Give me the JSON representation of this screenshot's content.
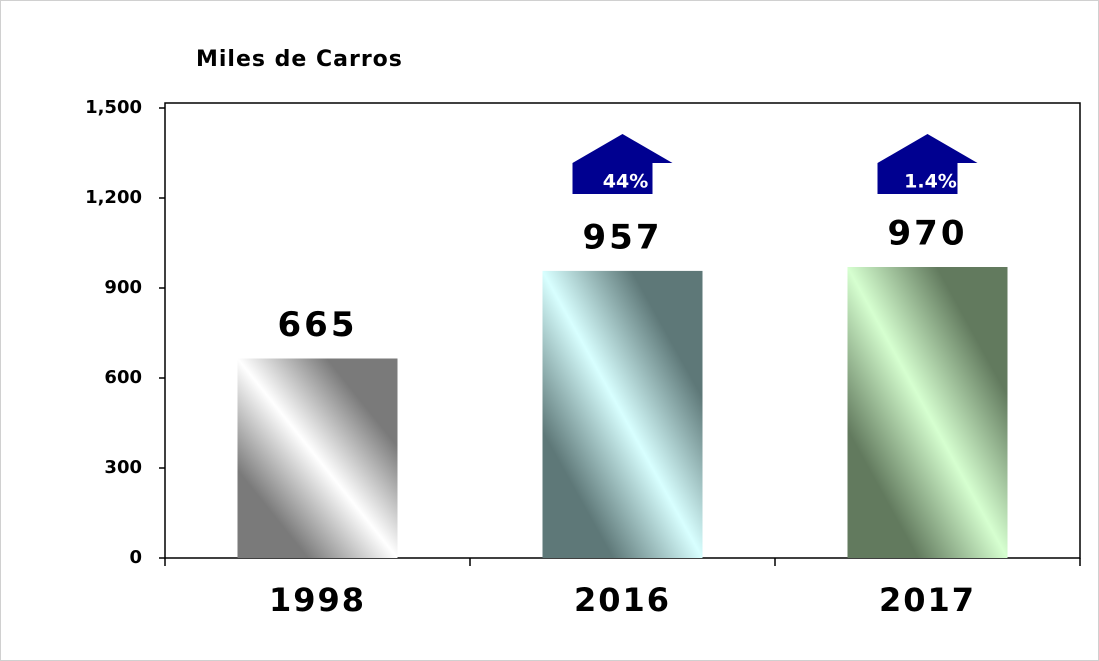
{
  "chart_data": {
    "type": "bar",
    "axis_title": "Miles de Carros",
    "categories": [
      "1998",
      "2016",
      "2017"
    ],
    "values": [
      665,
      957,
      970
    ],
    "colors": [
      "#7a7a7a",
      "#5e7878",
      "#627a5e"
    ],
    "highlight_colors": [
      "#ffffff",
      "#d8ffff",
      "#d6ffd0"
    ],
    "ylim": [
      0,
      1500
    ],
    "yticks": [
      0,
      300,
      600,
      900,
      {
        "value": 1200,
        "label": "1,200"
      },
      {
        "value": 1500,
        "label": "1,500"
      }
    ],
    "annotations": [
      {
        "x": "2016",
        "label": "44%"
      },
      {
        "x": "2017",
        "label": "1.4%"
      }
    ],
    "annotation_color": "#000090"
  }
}
